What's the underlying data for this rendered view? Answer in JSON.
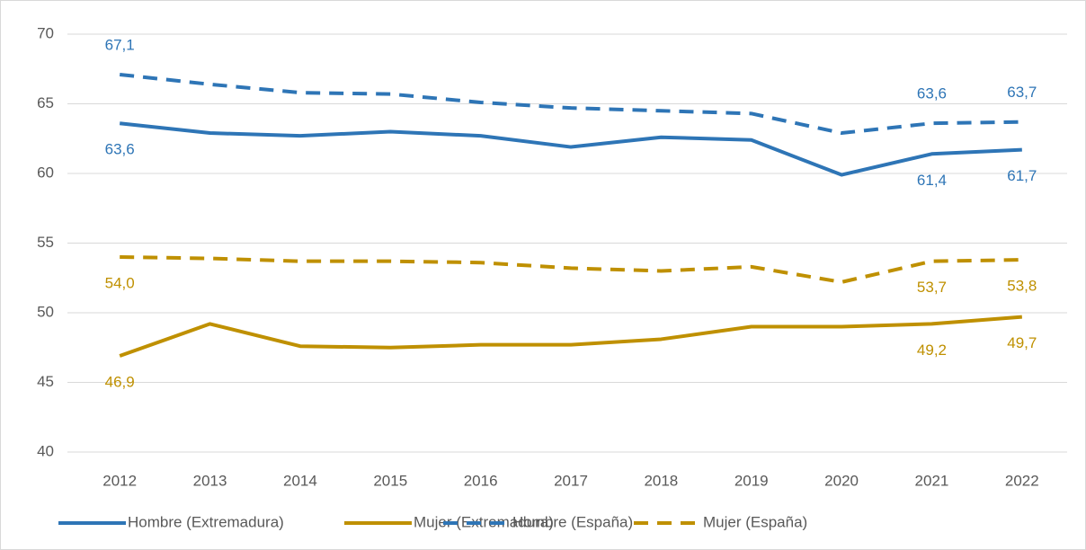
{
  "chart_data": {
    "type": "line",
    "categories": [
      "2012",
      "2013",
      "2014",
      "2015",
      "2016",
      "2017",
      "2018",
      "2019",
      "2020",
      "2021",
      "2022"
    ],
    "series": [
      {
        "name": "Hombre (Extremadura)",
        "color": "#2e75b6",
        "dashed": false,
        "values": [
          63.6,
          62.9,
          62.7,
          63.0,
          62.7,
          61.9,
          62.6,
          62.4,
          59.9,
          61.4,
          61.7
        ],
        "value_labels": [
          "63,6",
          null,
          null,
          null,
          null,
          null,
          null,
          null,
          null,
          "61,4",
          "61,7"
        ]
      },
      {
        "name": "Mujer (Extremadura)",
        "color": "#bf9000",
        "dashed": false,
        "values": [
          46.9,
          49.2,
          47.6,
          47.5,
          47.7,
          47.7,
          48.1,
          49.0,
          49.0,
          49.2,
          49.7
        ],
        "value_labels": [
          "46,9",
          null,
          null,
          null,
          null,
          null,
          null,
          null,
          null,
          "49,2",
          "49,7"
        ]
      },
      {
        "name": "Hombre (España)",
        "color": "#2e75b6",
        "dashed": true,
        "values": [
          67.1,
          66.4,
          65.8,
          65.7,
          65.1,
          64.7,
          64.5,
          64.3,
          62.9,
          63.6,
          63.7
        ],
        "value_labels": [
          "67,1",
          null,
          null,
          null,
          null,
          null,
          null,
          null,
          null,
          "63,6",
          "63,7"
        ]
      },
      {
        "name": "Mujer (España)",
        "color": "#bf9000",
        "dashed": true,
        "values": [
          54.0,
          53.9,
          53.7,
          53.7,
          53.6,
          53.2,
          53.0,
          53.3,
          52.2,
          53.7,
          53.8
        ],
        "value_labels": [
          "54,0",
          null,
          null,
          null,
          null,
          null,
          null,
          null,
          null,
          "53,7",
          "53,8"
        ]
      }
    ],
    "ylim": [
      40,
      70
    ],
    "yticks": [
      40,
      45,
      50,
      55,
      60,
      65,
      70
    ],
    "grid": true,
    "legend": "bottom"
  }
}
